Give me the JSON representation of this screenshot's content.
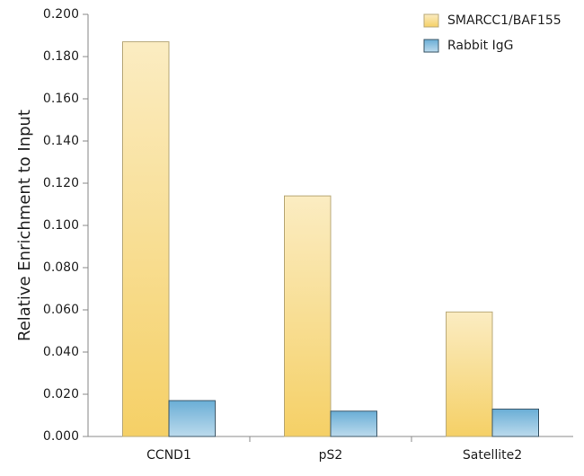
{
  "chart_data": {
    "type": "bar",
    "y_label": "Relative Enrichment to Input",
    "categories": [
      "CCND1",
      "pS2",
      "Satellite2"
    ],
    "series": [
      {
        "name": "SMARCC1/BAF155",
        "color": "#f5d066",
        "values": [
          0.187,
          0.114,
          0.059
        ]
      },
      {
        "name": "Rabbit IgG",
        "color": "#6aaed6",
        "values": [
          0.017,
          0.012,
          0.013
        ]
      }
    ],
    "ylim": [
      0,
      0.2
    ],
    "yticks": [
      {
        "value": 0,
        "label": "0.000"
      },
      {
        "value": 0.02,
        "label": "0.020"
      },
      {
        "value": 0.04,
        "label": "0.040"
      },
      {
        "value": 0.06,
        "label": "0.060"
      },
      {
        "value": 0.08,
        "label": "0.080"
      },
      {
        "value": 0.1,
        "label": "0.100"
      },
      {
        "value": 0.12,
        "label": "0.120"
      },
      {
        "value": 0.14,
        "label": "0.140"
      },
      {
        "value": 0.16,
        "label": "0.160"
      },
      {
        "value": 0.18,
        "label": "0.180"
      },
      {
        "value": 0.2,
        "label": "0.200"
      }
    ],
    "legend": "top-right"
  }
}
